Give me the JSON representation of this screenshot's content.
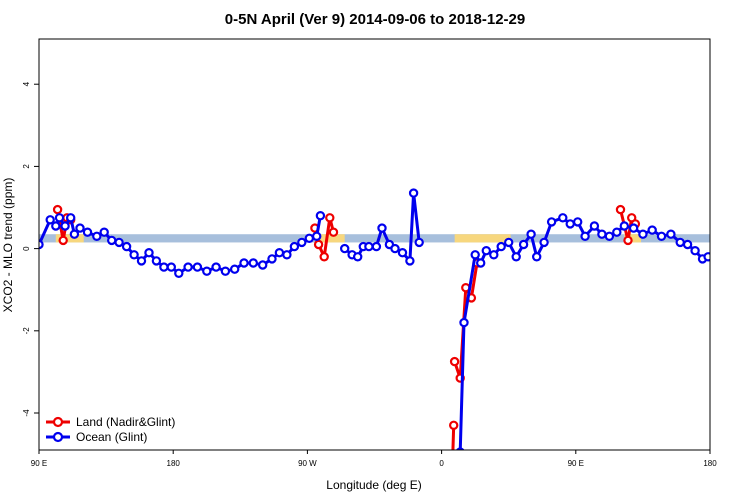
{
  "chart_data": {
    "type": "line",
    "title": "0-5N April (Ver 9)   2014-09-06 to 2018-12-29",
    "xlabel": "Longitude (deg E)",
    "ylabel": "XCO2 - MLO trend (ppm)",
    "xlim": [
      90,
      450
    ],
    "ylim": [
      -4.9,
      5.1
    ],
    "x_ticks": [
      {
        "value": 90,
        "label": "90 E"
      },
      {
        "value": 162,
        "label": "180"
      },
      {
        "value": 234,
        "label": "90 W"
      },
      {
        "value": 306,
        "label": "0"
      },
      {
        "value": 378,
        "label": "90 E"
      },
      {
        "value": 450,
        "label": "180"
      }
    ],
    "y_ticks": [
      {
        "value": -4,
        "label": "-4"
      },
      {
        "value": -2,
        "label": "-2"
      },
      {
        "value": 0,
        "label": "0"
      },
      {
        "value": 2,
        "label": "2"
      },
      {
        "value": 4,
        "label": "4"
      }
    ],
    "grid": false,
    "legend_position": "bottom-left",
    "band": {
      "y_range": [
        0.15,
        0.35
      ],
      "color_ocean": "#a7bfdc",
      "color_land": "#f7d77e",
      "land_segments": [
        [
          99,
          114
        ],
        [
          240,
          254
        ],
        [
          313,
          343
        ],
        [
          404,
          413
        ]
      ]
    },
    "series": [
      {
        "name": "Land (Nadir&Glint)",
        "color": "#ee0000",
        "segments": [
          [
            [
              100,
              0.95
            ],
            [
              103,
              0.2
            ],
            [
              105,
              0.75
            ],
            [
              107,
              0.7
            ]
          ],
          [
            [
              238,
              0.5
            ],
            [
              240,
              0.1
            ],
            [
              243,
              -0.2
            ],
            [
              246,
              0.75
            ],
            [
              248,
              0.4
            ]
          ],
          [
            [
              312,
              -5.0
            ],
            [
              312.5,
              -4.3
            ]
          ],
          [
            [
              313,
              -2.75
            ],
            [
              316,
              -3.15
            ],
            [
              319,
              -0.95
            ],
            [
              322,
              -1.2
            ],
            [
              325,
              -0.35
            ]
          ],
          [
            [
              402,
              0.95
            ],
            [
              406,
              0.2
            ],
            [
              408,
              0.75
            ],
            [
              410,
              0.6
            ]
          ]
        ]
      },
      {
        "name": "Ocean (Glint)",
        "color": "#0000ee",
        "segments": [
          [
            [
              90,
              0.1
            ],
            [
              96,
              0.7
            ],
            [
              99,
              0.55
            ],
            [
              101,
              0.75
            ],
            [
              104,
              0.55
            ],
            [
              107,
              0.75
            ],
            [
              109,
              0.35
            ],
            [
              112,
              0.5
            ],
            [
              116,
              0.4
            ],
            [
              121,
              0.3
            ],
            [
              125,
              0.4
            ],
            [
              129,
              0.2
            ],
            [
              133,
              0.15
            ],
            [
              137,
              0.05
            ],
            [
              141,
              -0.15
            ],
            [
              145,
              -0.3
            ],
            [
              149,
              -0.1
            ],
            [
              153,
              -0.3
            ],
            [
              157,
              -0.45
            ],
            [
              161,
              -0.45
            ],
            [
              165,
              -0.6
            ],
            [
              170,
              -0.45
            ],
            [
              175,
              -0.45
            ],
            [
              180,
              -0.55
            ],
            [
              185,
              -0.45
            ],
            [
              190,
              -0.55
            ],
            [
              195,
              -0.5
            ],
            [
              200,
              -0.35
            ],
            [
              205,
              -0.35
            ],
            [
              210,
              -0.4
            ],
            [
              215,
              -0.25
            ],
            [
              219,
              -0.1
            ],
            [
              223,
              -0.15
            ],
            [
              227,
              0.05
            ],
            [
              231,
              0.15
            ],
            [
              235,
              0.25
            ],
            [
              239,
              0.3
            ],
            [
              241,
              0.8
            ]
          ],
          [
            [
              254,
              0.0
            ],
            [
              258,
              -0.15
            ],
            [
              261,
              -0.2
            ],
            [
              264,
              0.05
            ],
            [
              267,
              0.05
            ],
            [
              271,
              0.05
            ],
            [
              274,
              0.5
            ],
            [
              278,
              0.1
            ],
            [
              281,
              0.0
            ],
            [
              285,
              -0.1
            ],
            [
              289,
              -0.3
            ],
            [
              291,
              1.35
            ],
            [
              294,
              0.15
            ]
          ],
          [
            [
              316,
              -4.95
            ],
            [
              318,
              -1.8
            ],
            [
              324,
              -0.15
            ],
            [
              327,
              -0.35
            ],
            [
              330,
              -0.05
            ],
            [
              334,
              -0.15
            ],
            [
              338,
              0.05
            ],
            [
              342,
              0.15
            ],
            [
              346,
              -0.2
            ],
            [
              350,
              0.1
            ],
            [
              354,
              0.35
            ],
            [
              357,
              -0.2
            ],
            [
              361,
              0.15
            ],
            [
              365,
              0.65
            ],
            [
              371,
              0.75
            ],
            [
              375,
              0.6
            ],
            [
              379,
              0.65
            ],
            [
              383,
              0.3
            ],
            [
              388,
              0.55
            ],
            [
              392,
              0.35
            ],
            [
              396,
              0.3
            ],
            [
              400,
              0.4
            ],
            [
              404,
              0.55
            ],
            [
              409,
              0.5
            ],
            [
              414,
              0.35
            ],
            [
              419,
              0.45
            ],
            [
              424,
              0.3
            ],
            [
              429,
              0.35
            ],
            [
              434,
              0.15
            ],
            [
              438,
              0.1
            ],
            [
              442,
              -0.05
            ],
            [
              446,
              -0.25
            ],
            [
              449,
              -0.2
            ]
          ]
        ]
      }
    ]
  }
}
